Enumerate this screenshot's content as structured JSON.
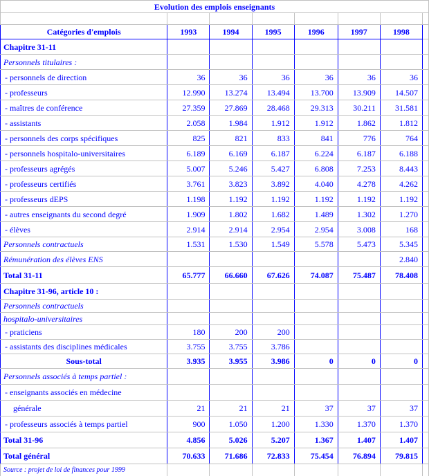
{
  "title": "Evolution des emplois enseignants",
  "header": {
    "category": "Catégories d'emplois",
    "years": [
      "1993",
      "1994",
      "1995",
      "1996",
      "1997",
      "1998"
    ]
  },
  "rows": [
    {
      "label": "Chapitre 31-11",
      "style": "bold",
      "values": [
        "",
        "",
        "",
        "",
        "",
        ""
      ]
    },
    {
      "label": "Personnels titulaires :",
      "style": "italic",
      "values": [
        "",
        "",
        "",
        "",
        "",
        ""
      ]
    },
    {
      "label": "- personnels de direction",
      "style": "item",
      "values": [
        "36",
        "36",
        "36",
        "36",
        "36",
        "36"
      ]
    },
    {
      "label": "- professeurs",
      "style": "item",
      "values": [
        "12.990",
        "13.274",
        "13.494",
        "13.700",
        "13.909",
        "14.507"
      ]
    },
    {
      "label": "- maîtres de conférence",
      "style": "item",
      "values": [
        "27.359",
        "27.869",
        "28.468",
        "29.313",
        "30.211",
        "31.581"
      ]
    },
    {
      "label": "- assistants",
      "style": "item",
      "values": [
        "2.058",
        "1.984",
        "1.912",
        "1.912",
        "1.862",
        "1.812"
      ]
    },
    {
      "label": "- personnels des corps spécifiques",
      "style": "item",
      "values": [
        "825",
        "821",
        "833",
        "841",
        "776",
        "764"
      ]
    },
    {
      "label": "- personnels hospitalo-universitaires",
      "style": "item",
      "values": [
        "6.189",
        "6.169",
        "6.187",
        "6.224",
        "6.187",
        "6.188"
      ]
    },
    {
      "label": "- professeurs agrégés",
      "style": "item",
      "values": [
        "5.007",
        "5.246",
        "5.427",
        "6.808",
        "7.253",
        "8.443"
      ]
    },
    {
      "label": "- professeurs certifiés",
      "style": "item",
      "values": [
        "3.761",
        "3.823",
        "3.892",
        "4.040",
        "4.278",
        "4.262"
      ]
    },
    {
      "label": "- professeurs dEPS",
      "style": "item",
      "values": [
        "1.198",
        "1.192",
        "1.192",
        "1.192",
        "1.192",
        "1.192"
      ]
    },
    {
      "label": "- autres enseignants du second degré",
      "style": "item",
      "values": [
        "1.909",
        "1.802",
        "1.682",
        "1.489",
        "1.302",
        "1.270"
      ]
    },
    {
      "label": "- élèves",
      "style": "item",
      "values": [
        "2.914",
        "2.914",
        "2.954",
        "2.954",
        "3.008",
        "168"
      ]
    },
    {
      "label": "Personnels contractuels",
      "style": "italic",
      "values": [
        "1.531",
        "1.530",
        "1.549",
        "5.578",
        "5.473",
        "5.345"
      ]
    },
    {
      "label": "Rémunération des élèves ENS",
      "style": "italic",
      "values": [
        "",
        "",
        "",
        "",
        "",
        "2.840"
      ]
    },
    {
      "label": "Total 31-11",
      "style": "bold",
      "values": [
        "65.777",
        "66.660",
        "67.626",
        "74.087",
        "75.487",
        "78.408"
      ]
    },
    {
      "label": "Chapitre 31-96, article 10 :",
      "style": "bold",
      "values": [
        "",
        "",
        "",
        "",
        "",
        ""
      ]
    },
    {
      "label": "Personnels contractuels",
      "style": "italic",
      "values": [
        "",
        "",
        "",
        "",
        "",
        ""
      ]
    },
    {
      "label": "hospitalo-universitaires",
      "style": "italic",
      "values": [
        "",
        "",
        "",
        "",
        "",
        ""
      ]
    },
    {
      "label": "- praticiens",
      "style": "item",
      "values": [
        "180",
        "200",
        "200",
        "",
        "",
        ""
      ]
    },
    {
      "label": "- assistants des disciplines médicales",
      "style": "item",
      "values": [
        "3.755",
        "3.755",
        "3.786",
        "",
        "",
        ""
      ]
    },
    {
      "label": "Sous-total",
      "style": "subtotal",
      "values": [
        "3.935",
        "3.955",
        "3.986",
        "0",
        "0",
        "0"
      ]
    },
    {
      "label": "Personnels associés à temps partiel :",
      "style": "italic",
      "values": [
        "",
        "",
        "",
        "",
        "",
        ""
      ]
    },
    {
      "label": "- enseignants associés en médecine",
      "style": "item",
      "values": [
        "",
        "",
        "",
        "",
        "",
        ""
      ]
    },
    {
      "label": "générale",
      "style": "indent",
      "values": [
        "21",
        "21",
        "21",
        "37",
        "37",
        "37"
      ]
    },
    {
      "label": "- professeurs associés à temps partiel",
      "style": "item",
      "values": [
        "900",
        "1.050",
        "1.200",
        "1.330",
        "1.370",
        "1.370"
      ]
    },
    {
      "label": "Total 31-96",
      "style": "bold",
      "values": [
        "4.856",
        "5.026",
        "5.207",
        "1.367",
        "1.407",
        "1.407"
      ]
    },
    {
      "label": "Total général",
      "style": "bold",
      "values": [
        "70.633",
        "71.686",
        "72.833",
        "75.454",
        "76.894",
        "79.815"
      ]
    }
  ],
  "source": "Source : projet de loi de finances pour 1999"
}
